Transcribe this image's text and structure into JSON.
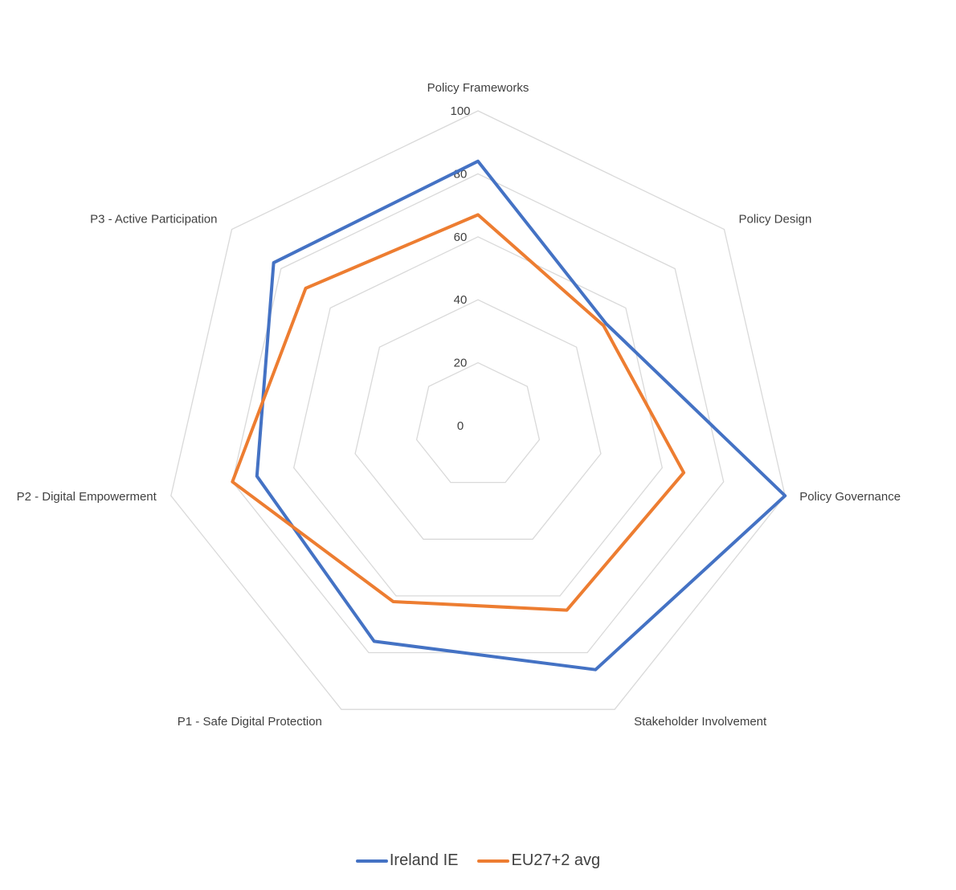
{
  "chart_data": {
    "type": "radar",
    "categories": [
      "Policy Frameworks",
      "Policy Design",
      "Policy Governance",
      "Stakeholder Involvement",
      "P1 - Safe Digital Protection",
      "P2 - Digital Empowerment",
      "P3 - Active Participation"
    ],
    "rlim": [
      0,
      100
    ],
    "ticks": [
      "0",
      "20",
      "40",
      "60",
      "80",
      "100"
    ],
    "tick_values": [
      0,
      20,
      40,
      60,
      80,
      100
    ],
    "grid": true,
    "legend_position": "bottom",
    "series": [
      {
        "name": "Ireland IE",
        "color": "#4472C4",
        "values": [
          84,
          52,
          100,
          86,
          76,
          72,
          83
        ]
      },
      {
        "name": "EU27+2 avg",
        "color": "#ED7D31",
        "values": [
          67,
          51,
          67,
          65,
          62,
          80,
          70
        ]
      }
    ]
  }
}
